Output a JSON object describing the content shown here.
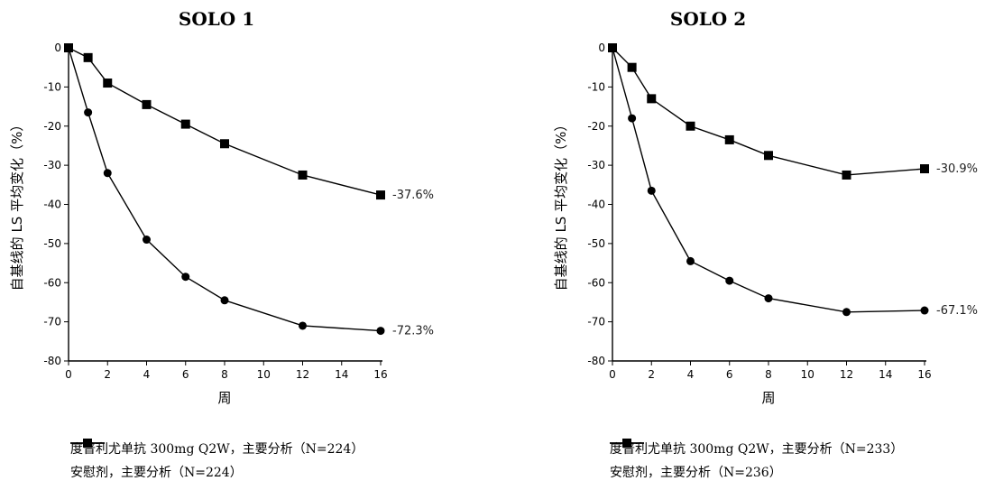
{
  "chart_data": [
    {
      "type": "line",
      "title": "SOLO 1",
      "xlabel": "周",
      "ylabel": "自基线的 LS 平均变化（%）",
      "xlim": [
        0,
        16
      ],
      "ylim": [
        -80,
        0
      ],
      "xticks": [
        0,
        2,
        4,
        6,
        8,
        10,
        12,
        14,
        16
      ],
      "yticks": [
        0,
        -10,
        -20,
        -30,
        -40,
        -50,
        -60,
        -70,
        -80
      ],
      "grid": false,
      "legend_position": "bottom",
      "series": [
        {
          "name": "度普利尤单抗 300mg Q2W，主要分析（N=224）",
          "marker": "circle",
          "x": [
            0,
            1,
            2,
            4,
            6,
            8,
            12,
            16
          ],
          "y": [
            0,
            -16.5,
            -32,
            -49,
            -58.5,
            -64.5,
            -71,
            -72.3
          ],
          "end_label": "-72.3%"
        },
        {
          "name": "安慰剂，主要分析（N=224）",
          "marker": "square",
          "x": [
            0,
            1,
            2,
            4,
            6,
            8,
            12,
            16
          ],
          "y": [
            0,
            -2.5,
            -9,
            -14.5,
            -19.5,
            -24.5,
            -32.5,
            -37.6
          ],
          "end_label": "-37.6%"
        }
      ]
    },
    {
      "type": "line",
      "title": "SOLO 2",
      "xlabel": "周",
      "ylabel": "自基线的 LS 平均变化（%）",
      "xlim": [
        0,
        16
      ],
      "ylim": [
        -80,
        0
      ],
      "xticks": [
        0,
        2,
        4,
        6,
        8,
        10,
        12,
        14,
        16
      ],
      "yticks": [
        0,
        -10,
        -20,
        -30,
        -40,
        -50,
        -60,
        -70,
        -80
      ],
      "grid": false,
      "legend_position": "bottom",
      "series": [
        {
          "name": "度普利尤单抗 300mg Q2W，主要分析（N=233）",
          "marker": "circle",
          "x": [
            0,
            1,
            2,
            4,
            6,
            8,
            12,
            16
          ],
          "y": [
            0,
            -18,
            -36.5,
            -54.5,
            -59.5,
            -64,
            -67.5,
            -67.1
          ],
          "end_label": "-67.1%"
        },
        {
          "name": "安慰剂，主要分析（N=236）",
          "marker": "square",
          "x": [
            0,
            1,
            2,
            4,
            6,
            8,
            12,
            16
          ],
          "y": [
            0,
            -5,
            -13,
            -20,
            -23.5,
            -27.5,
            -32.5,
            -30.9
          ],
          "end_label": "-30.9%"
        }
      ]
    }
  ]
}
